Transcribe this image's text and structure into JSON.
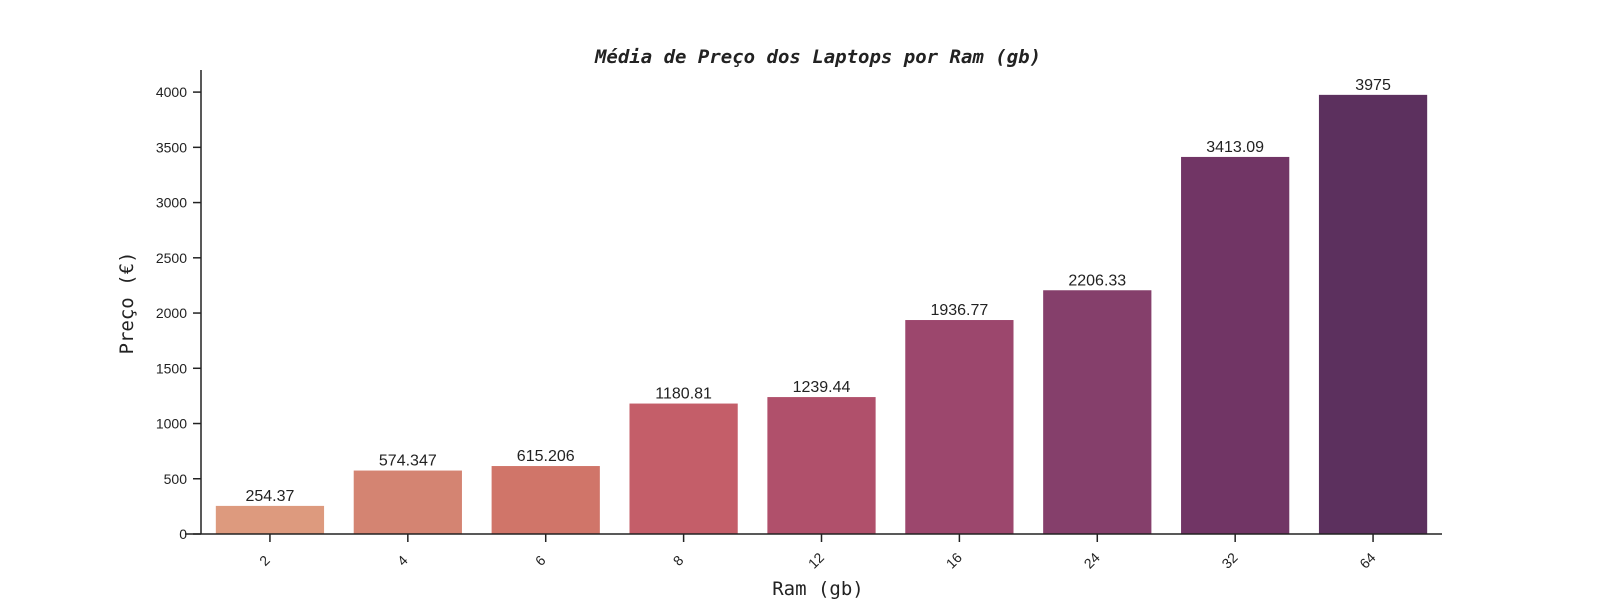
{
  "chart_data": {
    "type": "bar",
    "title": "Média de Preço dos Laptops por Ram (gb)",
    "xlabel": "Ram (gb)",
    "ylabel": "Preço (€)",
    "categories": [
      "2",
      "4",
      "6",
      "8",
      "12",
      "16",
      "24",
      "32",
      "64"
    ],
    "values": [
      254.37,
      574.347,
      615.206,
      1180.81,
      1239.44,
      1936.77,
      2206.33,
      3413.09,
      3975
    ],
    "value_labels": [
      "254.37",
      "574.347",
      "615.206",
      "1180.81",
      "1239.44",
      "1936.77",
      "2206.33",
      "3413.09",
      "3975"
    ],
    "ylim": [
      0,
      4200
    ],
    "yticks": [
      "0",
      "500",
      "1000",
      "1500",
      "2000",
      "2500",
      "3000",
      "3500",
      "4000"
    ],
    "grid": false,
    "colors": [
      "#dd9a7e",
      "#d48472",
      "#d07569",
      "#c45e69",
      "#b0506b",
      "#9c476d",
      "#853f6b",
      "#713565",
      "#5c305e"
    ]
  }
}
